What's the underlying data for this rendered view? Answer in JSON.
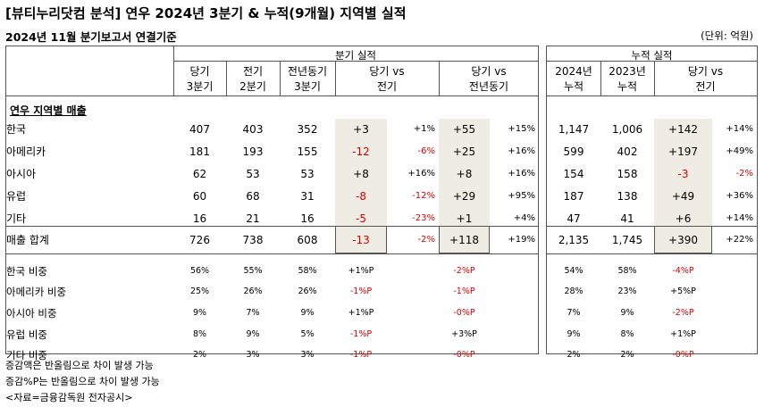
{
  "title": "[뷰티누리닷컴 분석] 연우 2024년 3분기 & 누적(9개월) 지역별 실적",
  "subtitle": "2024년 11월 분기보고서 연결기준",
  "unit": "(단위: 억원)",
  "quarterly_header": "분기 실적",
  "cumulative_header": "누적 실적",
  "columns": {
    "q_cur": [
      "당기",
      "3분기"
    ],
    "q_prev": [
      "전기",
      "2분기"
    ],
    "q_yoy": [
      "전년동기",
      "3분기"
    ],
    "q_vs_prev": [
      "당기 vs",
      "전기"
    ],
    "q_vs_yoy": [
      "당기 vs",
      "전년동기"
    ],
    "c_2024": [
      "2024년",
      "누적"
    ],
    "c_2023": [
      "2023년",
      "누적"
    ],
    "c_vs": [
      "당기 vs",
      "전기"
    ]
  },
  "section_label": "연우 지역별 매출",
  "rows": [
    {
      "label": "한국",
      "q3": "407",
      "q2": "403",
      "q3_ly": "352",
      "d_prev": "+3",
      "d_prev_pct": "+1%",
      "d_yoy": "+55",
      "d_yoy_pct": "+15%",
      "c2024": "1,147",
      "c2023": "1,006",
      "c_diff": "+142",
      "c_diff_pct": "+14%"
    },
    {
      "label": "아메리카",
      "q3": "181",
      "q2": "193",
      "q3_ly": "155",
      "d_prev": "-12",
      "d_prev_pct": "-6%",
      "d_yoy": "+25",
      "d_yoy_pct": "+16%",
      "c2024": "599",
      "c2023": "402",
      "c_diff": "+197",
      "c_diff_pct": "+49%"
    },
    {
      "label": "아시아",
      "q3": "62",
      "q2": "53",
      "q3_ly": "53",
      "d_prev": "+8",
      "d_prev_pct": "+16%",
      "d_yoy": "+8",
      "d_yoy_pct": "+16%",
      "c2024": "154",
      "c2023": "158",
      "c_diff": "-3",
      "c_diff_pct": "-2%"
    },
    {
      "label": "유럽",
      "q3": "60",
      "q2": "68",
      "q3_ly": "31",
      "d_prev": "-8",
      "d_prev_pct": "-12%",
      "d_yoy": "+29",
      "d_yoy_pct": "+95%",
      "c2024": "187",
      "c2023": "138",
      "c_diff": "+49",
      "c_diff_pct": "+36%"
    },
    {
      "label": "기타",
      "q3": "16",
      "q2": "21",
      "q3_ly": "16",
      "d_prev": "-5",
      "d_prev_pct": "-23%",
      "d_yoy": "+1",
      "d_yoy_pct": "+4%",
      "c2024": "47",
      "c2023": "41",
      "c_diff": "+6",
      "c_diff_pct": "+14%"
    }
  ],
  "total": {
    "label": "매출 합계",
    "q3": "726",
    "q2": "738",
    "q3_ly": "608",
    "d_prev": "-13",
    "d_prev_pct": "-2%",
    "d_yoy": "+118",
    "d_yoy_pct": "+19%",
    "c2024": "2,135",
    "c2023": "1,745",
    "c_diff": "+390",
    "c_diff_pct": "+22%"
  },
  "shares": [
    {
      "label": "한국 비중",
      "q3": "56%",
      "q2": "55%",
      "q3_ly": "58%",
      "d_prev": "+1%P",
      "d_yoy": "-2%P",
      "c2024": "54%",
      "c2023": "58%",
      "c_diff": "-4%P"
    },
    {
      "label": "아메리카 비중",
      "q3": "25%",
      "q2": "26%",
      "q3_ly": "26%",
      "d_prev": "-1%P",
      "d_yoy": "-1%P",
      "c2024": "28%",
      "c2023": "23%",
      "c_diff": "+5%P"
    },
    {
      "label": "아시아 비중",
      "q3": "9%",
      "q2": "7%",
      "q3_ly": "9%",
      "d_prev": "+1%P",
      "d_yoy": "-0%P",
      "c2024": "7%",
      "c2023": "9%",
      "c_diff": "-2%P"
    },
    {
      "label": "유럽 비중",
      "q3": "8%",
      "q2": "9%",
      "q3_ly": "5%",
      "d_prev": "-1%P",
      "d_yoy": "+3%P",
      "c2024": "9%",
      "c2023": "8%",
      "c_diff": "+1%P"
    },
    {
      "label": "기타 비중",
      "q3": "2%",
      "q2": "3%",
      "q3_ly": "3%",
      "d_prev": "-1%P",
      "d_yoy": "-0%P",
      "c2024": "2%",
      "c2023": "2%",
      "c_diff": "-0%P"
    }
  ],
  "notes": [
    "증감액은 반올림으로 차이 발생 가능",
    "증감%P는 반올림으로 차이 발생 가능",
    "<자료=금융감독원 전자공시>"
  ],
  "colors": {
    "negative": "#e00000",
    "highlight": "#efece3"
  }
}
